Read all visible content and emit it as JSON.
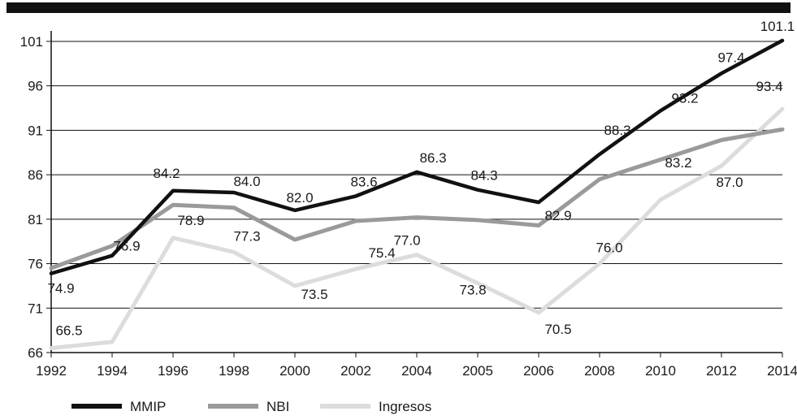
{
  "chart_data": {
    "type": "line",
    "title": "",
    "xlabel": "",
    "ylabel": "",
    "x": [
      "1992",
      "1994",
      "1996",
      "1998",
      "2000",
      "2002",
      "2004",
      "2005",
      "2006",
      "2008",
      "2010",
      "2012",
      "2014"
    ],
    "y_ticks": [
      66,
      71,
      76,
      81,
      86,
      91,
      96,
      101
    ],
    "ylim": [
      66,
      102
    ],
    "grid": "horizontal",
    "legend_position": "bottom",
    "series": [
      {
        "name": "MMIP",
        "color": "#111111",
        "values": [
          74.9,
          76.9,
          84.2,
          84.0,
          82.0,
          83.6,
          86.3,
          84.3,
          82.9,
          88.3,
          93.2,
          97.4,
          101.1
        ],
        "labels": [
          "74.9",
          "76.9",
          "84.2",
          "84.0",
          "82.0",
          "83.6",
          "86.3",
          "84.3",
          "82.9",
          "88.3",
          "93.2",
          "97.4",
          "101.1"
        ]
      },
      {
        "name": "NBI",
        "color": "#9a9a9a",
        "values": [
          75.5,
          78.0,
          82.6,
          82.3,
          78.7,
          80.8,
          81.2,
          80.9,
          80.3,
          85.5,
          87.7,
          89.9,
          91.1
        ],
        "labels": []
      },
      {
        "name": "Ingresos",
        "color": "#dcdcdc",
        "values": [
          66.5,
          67.2,
          78.9,
          77.3,
          73.5,
          75.4,
          77.0,
          73.8,
          70.5,
          76.0,
          83.2,
          87.0,
          93.4
        ],
        "labels": [
          "66.5",
          "",
          "78.9",
          "77.3",
          "73.5",
          "75.4",
          "77.0",
          "73.8",
          "70.5",
          "76.0",
          "83.2",
          "87.0",
          "93.4"
        ]
      }
    ]
  }
}
